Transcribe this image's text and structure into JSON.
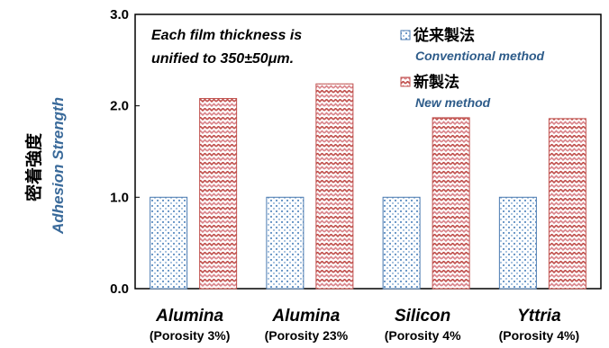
{
  "chart_data": {
    "type": "bar",
    "ylabel_jp": "密着強度",
    "ylabel_en": "Adhesion Strength",
    "ylim": [
      0,
      3
    ],
    "yticks": [
      "0.0",
      "1.0",
      "2.0",
      "3.0"
    ],
    "ytick_values": [
      0,
      1,
      2,
      3
    ],
    "grid": false,
    "legend_position": "top-right",
    "categories": [
      {
        "name": "Alumina",
        "sub": "(Porosity 3%)"
      },
      {
        "name": "Alumina",
        "sub": "(Porosity 23%"
      },
      {
        "name": "Silicon",
        "sub": "(Porosity 4%"
      },
      {
        "name": "Yttria",
        "sub": "(Porosity 4%)"
      }
    ],
    "series": [
      {
        "name": "従来製法",
        "name_en": "Conventional method",
        "values": [
          1.0,
          1.0,
          1.0,
          1.0
        ],
        "color": "#4a7ab0"
      },
      {
        "name": "新製法",
        "name_en": "New method",
        "values": [
          2.08,
          2.24,
          1.87,
          1.86
        ],
        "color": "#c0504d"
      }
    ],
    "annotation_line1": "Each film thickness is",
    "annotation_line2": "unified to 350±50μm."
  }
}
